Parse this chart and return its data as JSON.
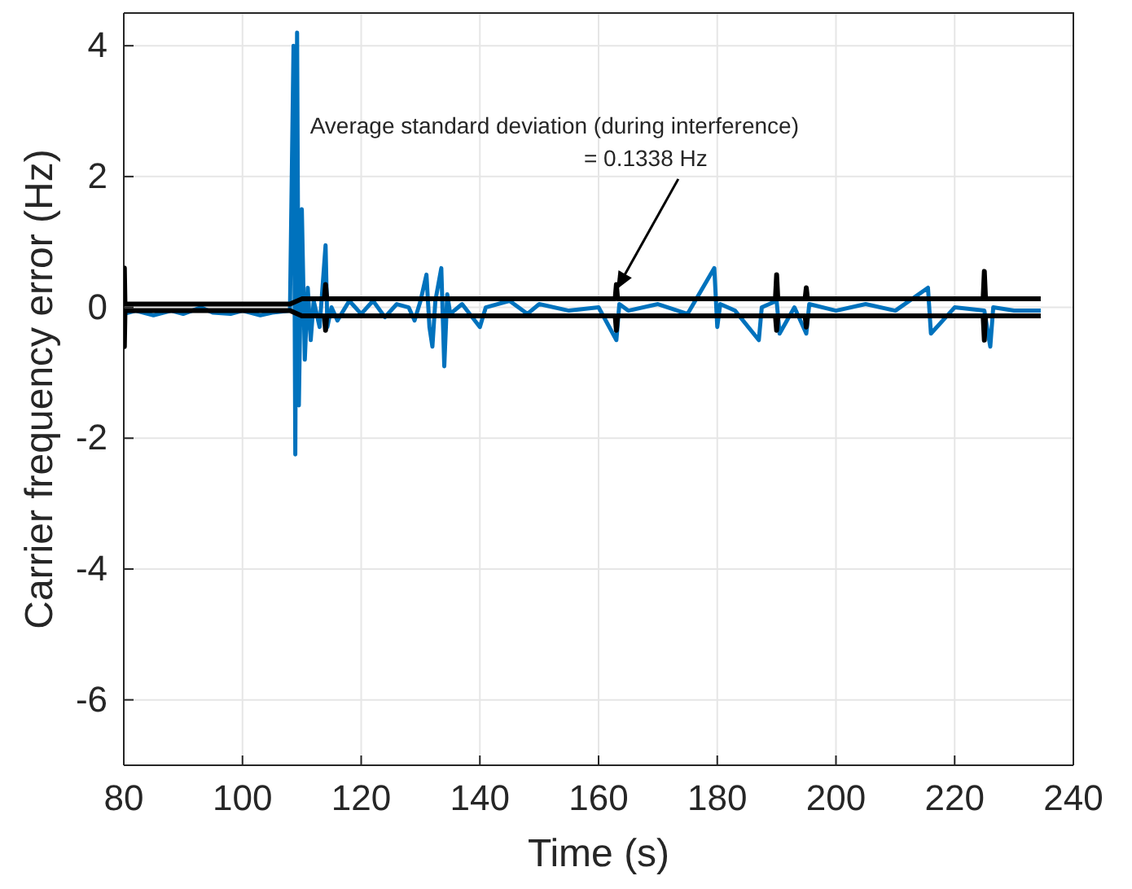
{
  "chart_data": {
    "type": "line",
    "xlabel": "Time (s)",
    "ylabel": "Carrier frequency error (Hz)",
    "xlim": [
      80,
      240
    ],
    "ylim": [
      -7,
      4.5
    ],
    "xticks": [
      80,
      100,
      120,
      140,
      160,
      180,
      200,
      220,
      240
    ],
    "yticks": [
      -6,
      -4,
      -2,
      0,
      2,
      4
    ],
    "grid": true,
    "marker": "none",
    "line_style": "solid",
    "annotations": [
      {
        "text": "Average standard deviation (during interference)\n= 0.1338 Hz",
        "x": 163,
        "y": 0.27
      }
    ],
    "series": [
      {
        "color": "#0072bd",
        "x": [
          80,
          82,
          85,
          88,
          90,
          93,
          95,
          98,
          100,
          103,
          105,
          108,
          108.6,
          108.9,
          109.2,
          109.5,
          110,
          110.5,
          111,
          111.5,
          112,
          113,
          114,
          114.3,
          115,
          116,
          118,
          120,
          122,
          124,
          126,
          128,
          129,
          130,
          131,
          131.5,
          132,
          132.5,
          133.5,
          134,
          134.5,
          135,
          137,
          140,
          141,
          145,
          148,
          150,
          155,
          160,
          163,
          163.5,
          165,
          170,
          175,
          179.5,
          180,
          180.5,
          183,
          187,
          187.5,
          190,
          190.5,
          193,
          195,
          195.5,
          200,
          205,
          210,
          215.5,
          216,
          220,
          225,
          226,
          226.5,
          230,
          234.5
        ],
        "values": [
          -0.1,
          -0.05,
          -0.12,
          -0.05,
          -0.1,
          0.0,
          -0.08,
          -0.1,
          -0.05,
          -0.12,
          -0.08,
          -0.05,
          4.0,
          -2.25,
          4.2,
          -1.5,
          1.5,
          -0.8,
          0.3,
          -0.5,
          0.1,
          -0.3,
          0.95,
          -0.3,
          0.0,
          -0.2,
          0.1,
          -0.1,
          0.1,
          -0.15,
          0.05,
          0.0,
          -0.2,
          0.1,
          0.5,
          -0.3,
          -0.6,
          0.1,
          0.6,
          -0.9,
          0.2,
          -0.1,
          0.05,
          -0.3,
          0.0,
          0.1,
          -0.1,
          0.05,
          -0.05,
          0.0,
          -0.5,
          0.05,
          -0.05,
          0.05,
          -0.1,
          0.6,
          -0.3,
          0.05,
          -0.05,
          -0.5,
          0.0,
          0.1,
          -0.4,
          0.0,
          -0.4,
          0.05,
          -0.05,
          0.05,
          -0.05,
          0.3,
          -0.4,
          0.0,
          -0.05,
          -0.6,
          0.0,
          -0.05,
          -0.05
        ]
      },
      {
        "color": "#000000",
        "x": [
          80,
          80.1,
          80.2,
          85,
          100,
          108,
          110,
          113.8,
          114,
          114.2,
          120,
          140,
          162.8,
          163,
          163.2,
          180,
          189.8,
          190,
          190.2,
          194.8,
          195,
          195.2,
          224.8,
          225,
          225.2,
          234.5
        ],
        "values": [
          0.05,
          0.6,
          0.05,
          0.05,
          0.05,
          0.05,
          0.13,
          0.13,
          0.35,
          0.13,
          0.13,
          0.13,
          0.13,
          0.35,
          0.13,
          0.13,
          0.13,
          0.5,
          0.13,
          0.13,
          0.3,
          0.13,
          0.13,
          0.55,
          0.13,
          0.13
        ]
      },
      {
        "color": "#000000",
        "x": [
          80,
          80.1,
          80.2,
          85,
          100,
          108,
          110,
          113.8,
          114,
          114.2,
          120,
          140,
          162.8,
          163,
          163.2,
          180,
          189.8,
          190,
          190.2,
          194.8,
          195,
          195.2,
          224.8,
          225,
          225.2,
          234.5
        ],
        "values": [
          -0.05,
          -0.6,
          -0.05,
          -0.05,
          -0.05,
          -0.05,
          -0.13,
          -0.13,
          -0.35,
          -0.13,
          -0.13,
          -0.13,
          -0.13,
          -0.35,
          -0.13,
          -0.13,
          -0.13,
          -0.35,
          -0.13,
          -0.13,
          -0.3,
          -0.13,
          -0.13,
          -0.5,
          -0.13,
          -0.13
        ]
      }
    ]
  }
}
